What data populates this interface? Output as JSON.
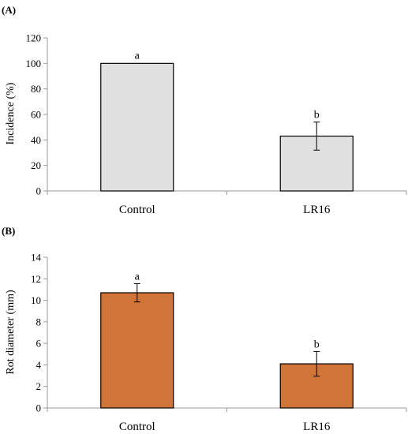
{
  "chart_data": [
    {
      "panel_label": "(A)",
      "type": "bar",
      "categories": [
        "Control",
        "LR16"
      ],
      "values": [
        100,
        43
      ],
      "errors": [
        0,
        11
      ],
      "significance": [
        "a",
        "b"
      ],
      "xlabel": "",
      "ylabel": "Incidence (%)",
      "ylim": [
        0,
        120
      ],
      "yticks": [
        0,
        20,
        40,
        60,
        80,
        100,
        120
      ],
      "bar_color": "#e0e0e0",
      "grid": false
    },
    {
      "panel_label": "(B)",
      "type": "bar",
      "categories": [
        "Control",
        "LR16"
      ],
      "values": [
        10.7,
        4.1
      ],
      "errors": [
        0.85,
        1.15
      ],
      "significance": [
        "a",
        "b"
      ],
      "xlabel": "",
      "ylabel": "Rot diameter (mm)",
      "ylim": [
        0,
        14
      ],
      "yticks": [
        0,
        2,
        4,
        6,
        8,
        10,
        12,
        14
      ],
      "bar_color": "#d07438",
      "grid": false
    }
  ]
}
